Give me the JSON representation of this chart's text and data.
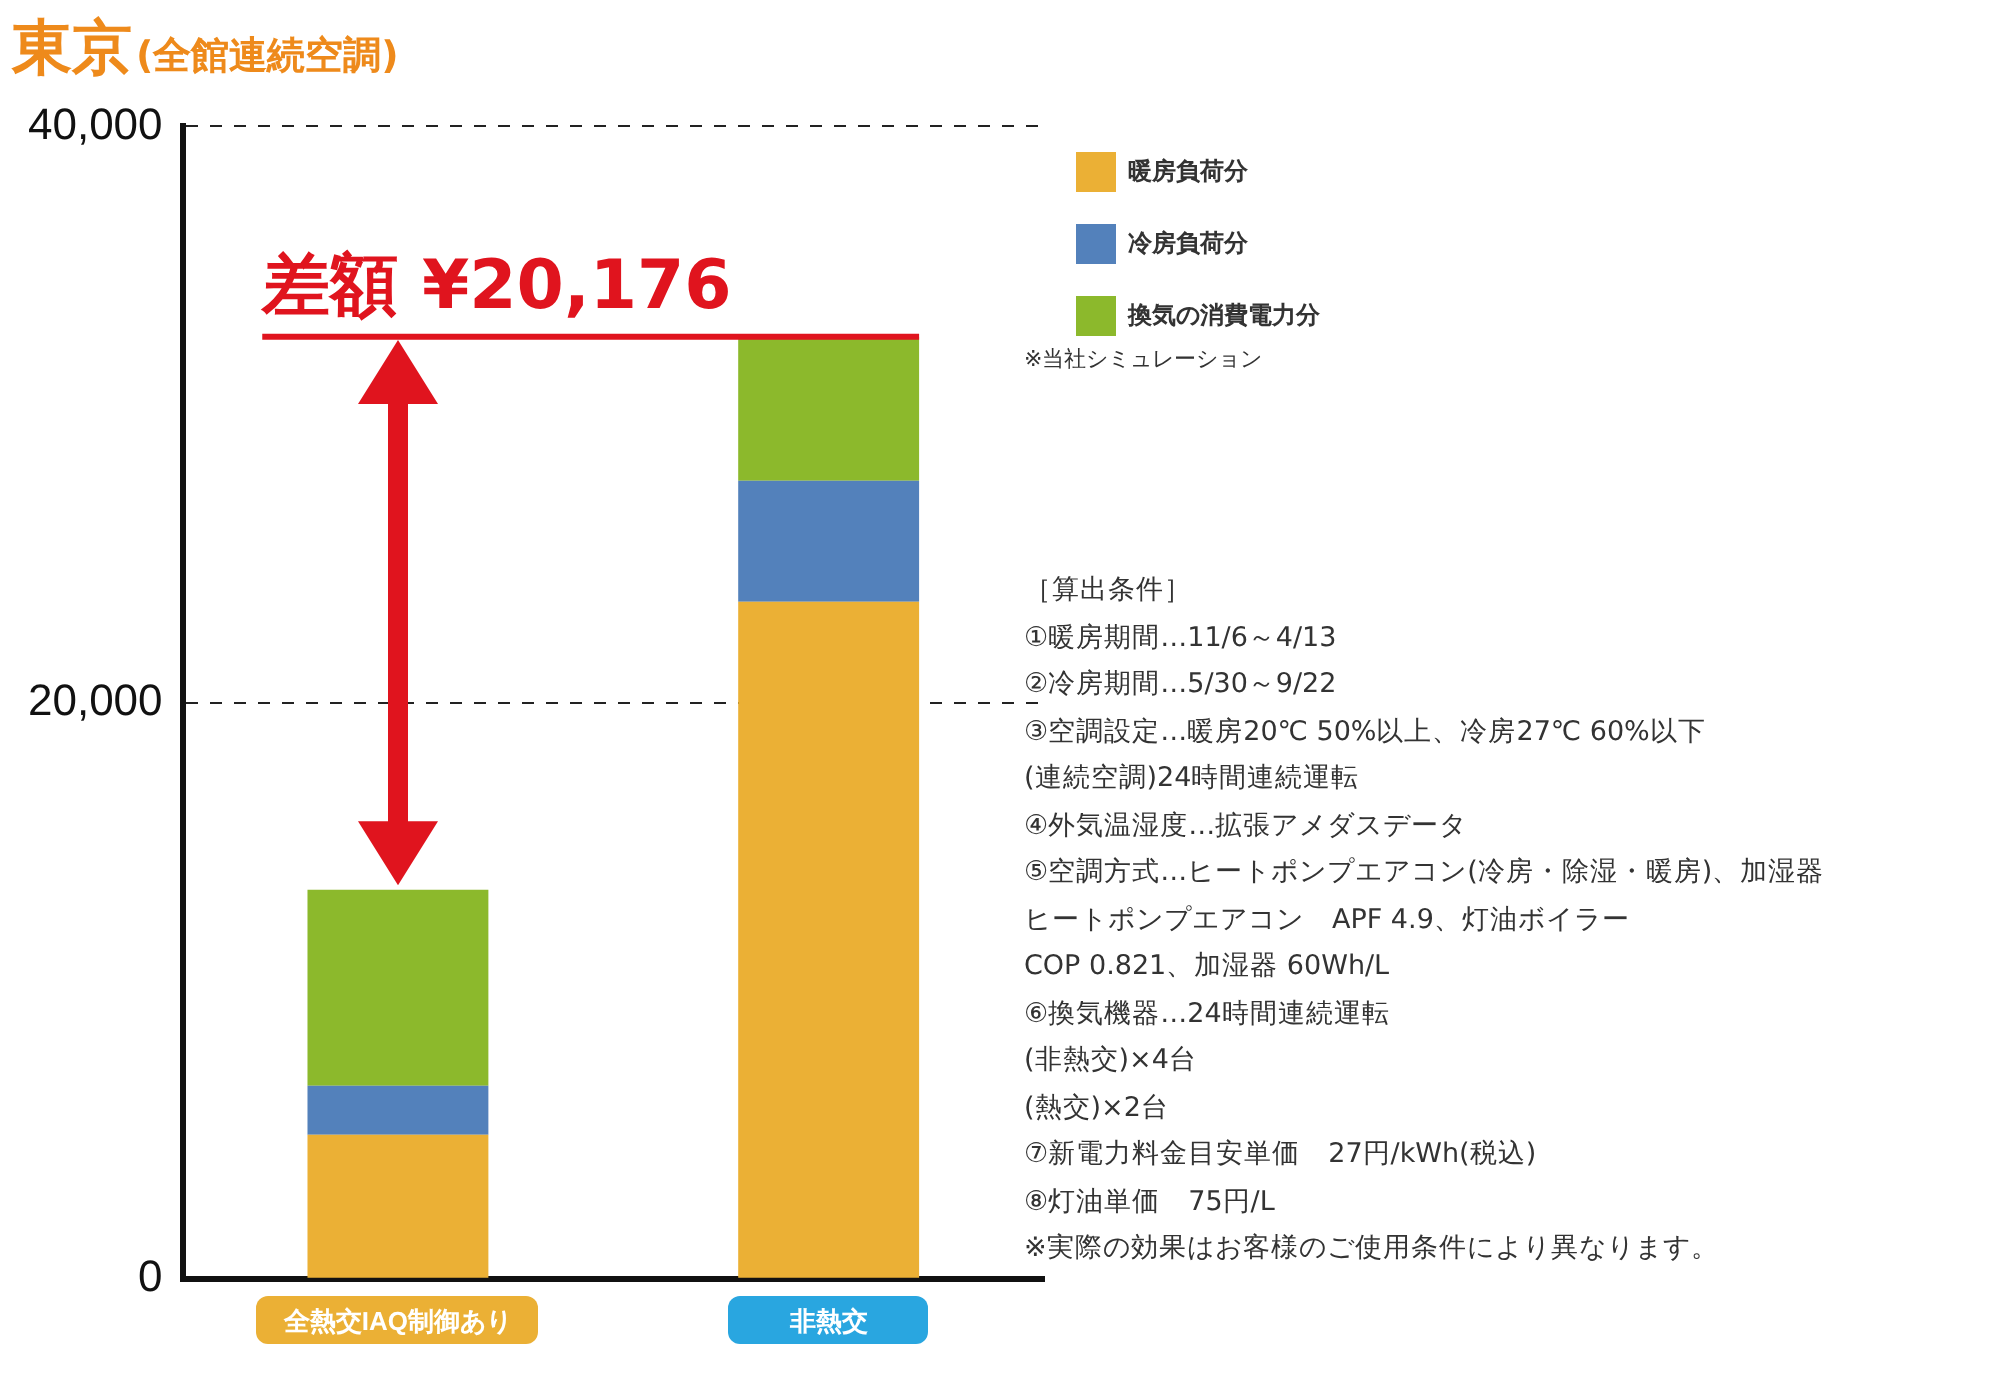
{
  "chart_data": {
    "type": "bar",
    "title": "東京",
    "subtitle": "(全館連続空調)",
    "categories": [
      "全熱交IAQ制御あり",
      "非熱交"
    ],
    "series": [
      {
        "name": "暖房負荷分",
        "color": "#ebb035",
        "values": [
          5000,
          23500
        ]
      },
      {
        "name": "冷房負荷分",
        "color": "#5381bb",
        "values": [
          1700,
          4200
        ]
      },
      {
        "name": "換気の消費電力分",
        "color": "#8cb92c",
        "values": [
          6800,
          5000
        ]
      }
    ],
    "stacked": true,
    "ylim": [
      0,
      40000
    ],
    "yticks": [
      0,
      {
        "value": 20000,
        "label": "20,000"
      },
      {
        "value": 40000,
        "label": "40,000"
      }
    ],
    "grid": "y",
    "line_style": "dashed",
    "legend": "top right",
    "ref_lines": [
      {
        "axis": "y",
        "value": 32700,
        "label": "差額 ¥20,176",
        "color": "#e0141e"
      }
    ],
    "annotations": [
      "※当社シミュレーション",
      "［算出条件］",
      "①暖房期間…11/6～4/13",
      "②冷房期間…5/30～9/22",
      "③空調設定…暖房20℃ 50%以上、冷房27℃ 60%以下",
      "(連続空調)24時間連続運転",
      "④外気温湿度…拡張アメダスデータ",
      "⑤空調方式…ヒートポンプエアコン(冷房・除湿・暖房)、加湿器",
      "ヒートポンプエアコン　APF 4.9、灯油ボイラー",
      "COP 0.821、加湿器 60Wh/L",
      "⑥換気機器…24時間連続運転",
      "(非熱交)×4台",
      "(熱交)×2台",
      "⑦新電力料金目安単価　27円/kWh(税込)",
      "⑧灯油単価　75円/L",
      "※実際の効果はお客様のご使用条件により異なります。"
    ]
  }
}
